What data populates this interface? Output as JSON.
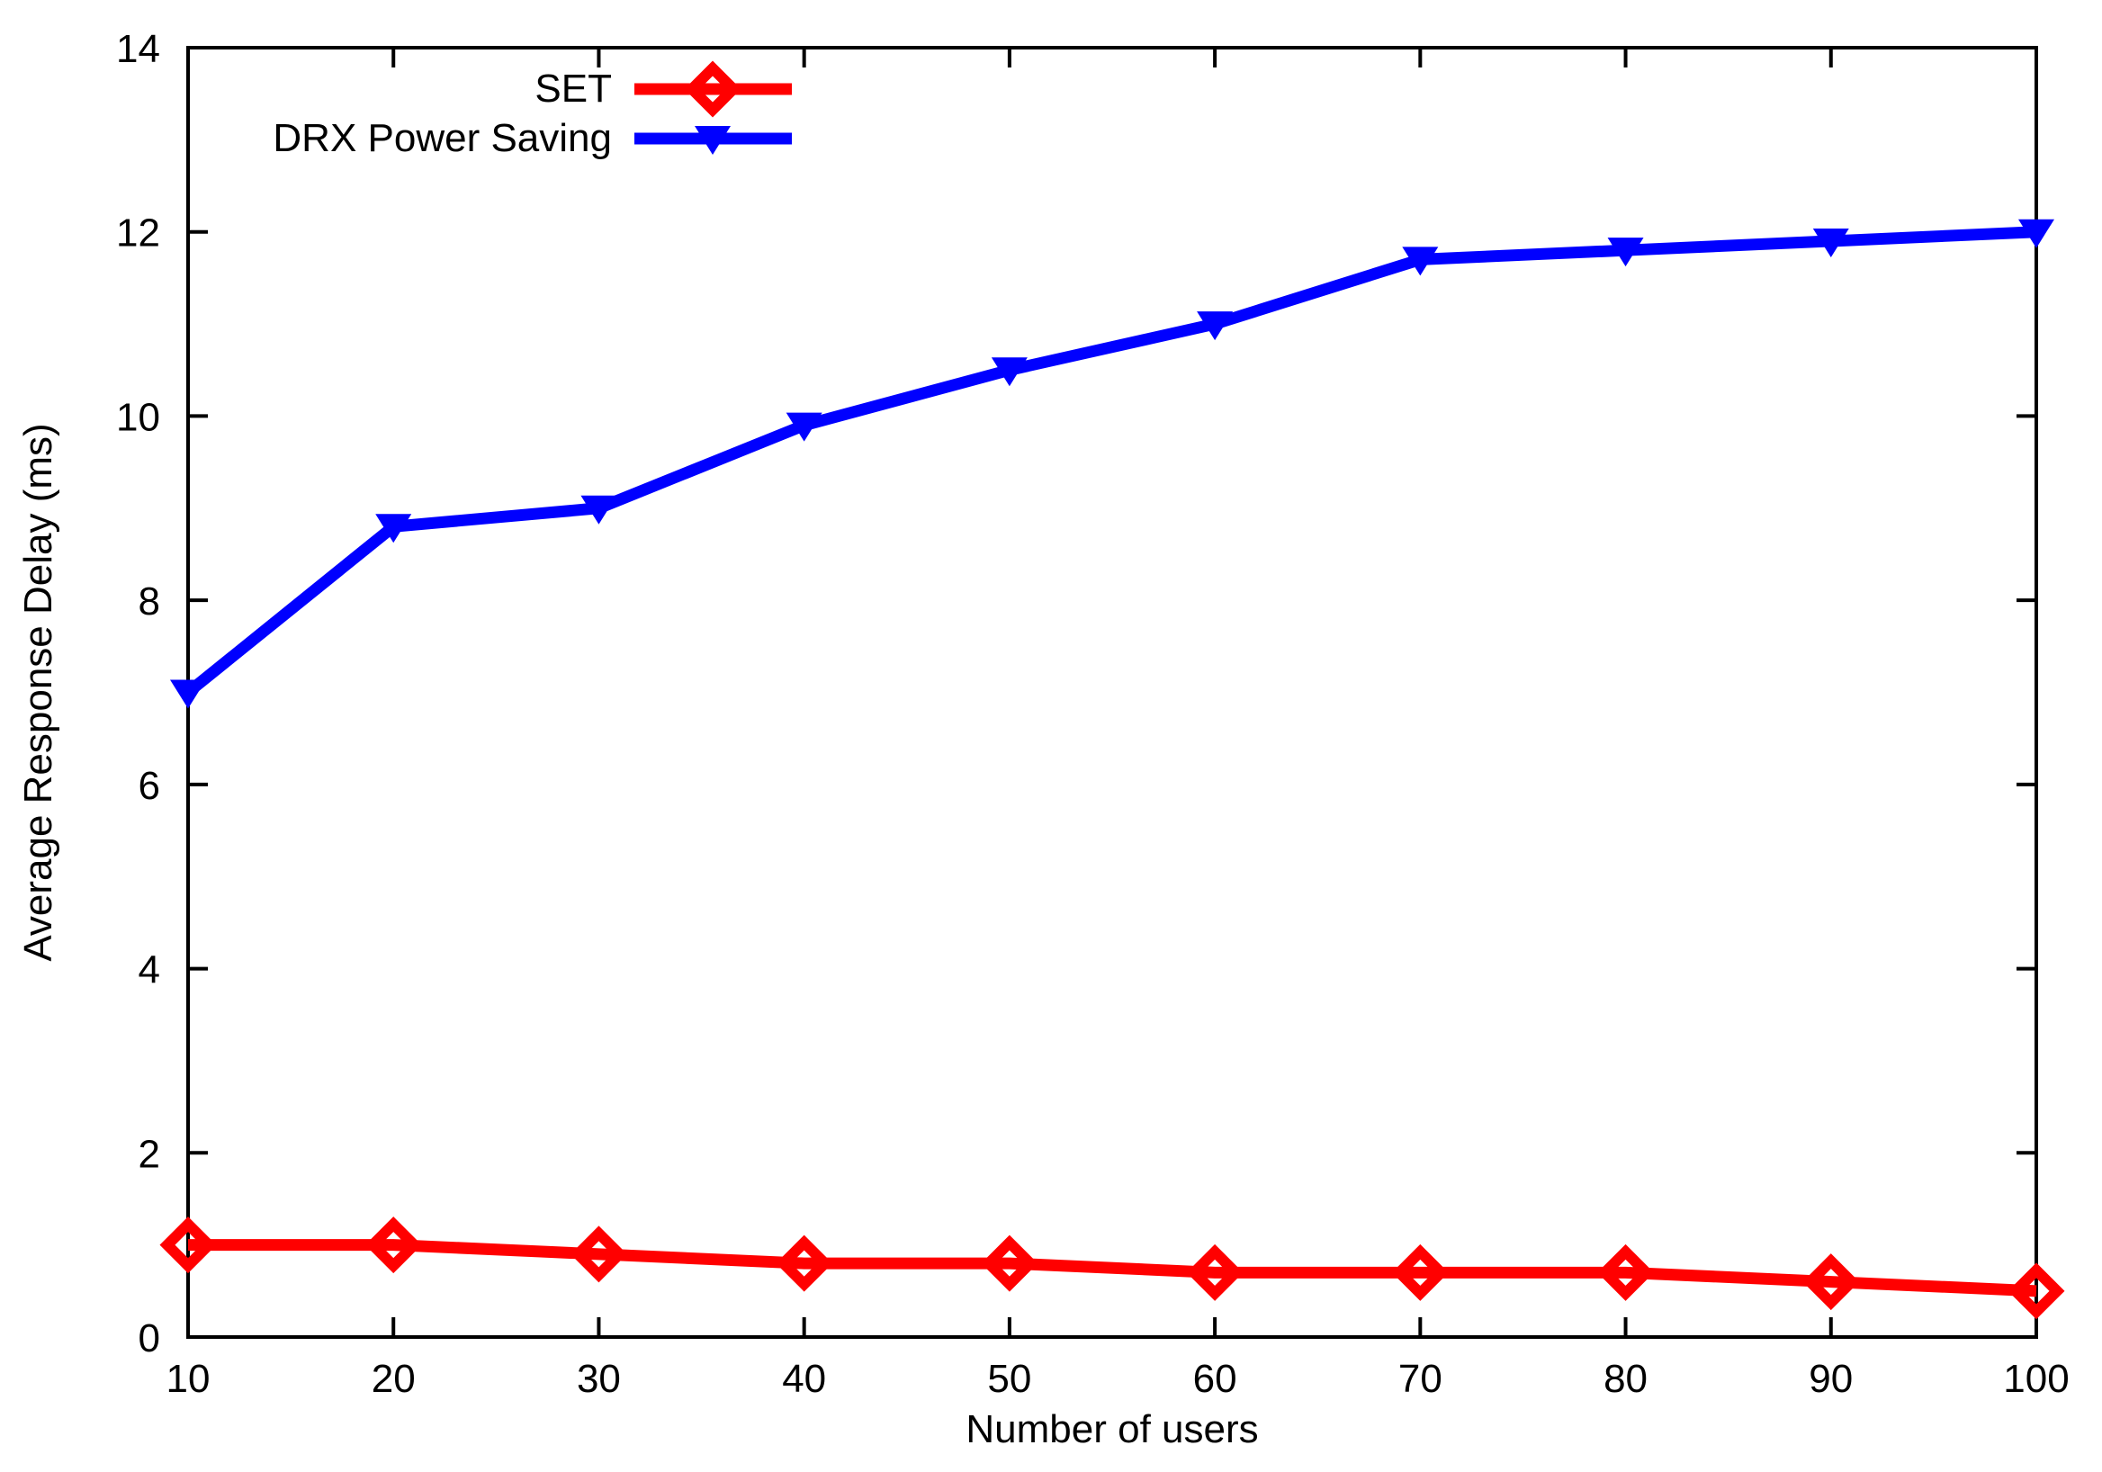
{
  "chart_data": {
    "type": "line",
    "title": "",
    "xlabel": "Number of users",
    "ylabel": "Average Response Delay (ms)",
    "x": [
      10,
      20,
      30,
      40,
      50,
      60,
      70,
      80,
      90,
      100
    ],
    "xlim": [
      10,
      100
    ],
    "ylim": [
      0,
      14
    ],
    "xticks": [
      10,
      20,
      30,
      40,
      50,
      60,
      70,
      80,
      90,
      100
    ],
    "yticks": [
      0,
      2,
      4,
      6,
      8,
      10,
      12,
      14
    ],
    "grid": false,
    "legend_position": "top-inside",
    "series": [
      {
        "name": "SET",
        "color": "#ff0000",
        "marker": "open-diamond",
        "values": [
          1.0,
          1.0,
          0.9,
          0.8,
          0.8,
          0.7,
          0.7,
          0.7,
          0.6,
          0.5
        ]
      },
      {
        "name": "DRX Power Saving",
        "color": "#0000ff",
        "marker": "filled-triangle-down",
        "values": [
          7.0,
          8.8,
          9.0,
          9.9,
          10.5,
          11.0,
          11.7,
          11.8,
          11.9,
          12.0
        ]
      }
    ]
  },
  "colors": {
    "axis": "#000000",
    "background": "#ffffff",
    "set_series": "#ff0000",
    "drx_series": "#0000ff"
  }
}
